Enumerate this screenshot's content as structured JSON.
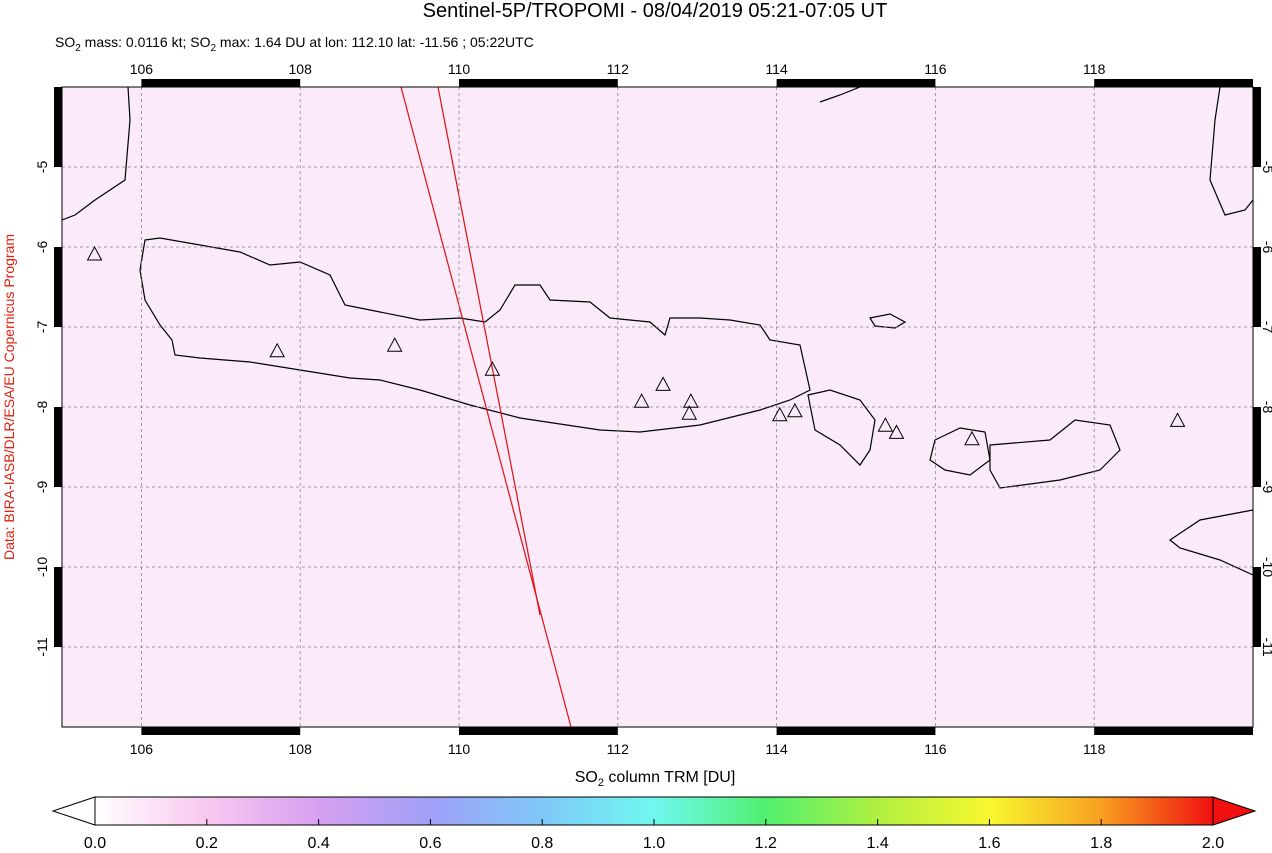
{
  "chart_data": {
    "type": "map",
    "title": "Sentinel-5P/TROPOMI - 08/04/2019 05:21-07:05 UT",
    "subtitle_parts": [
      "SO",
      "2",
      " mass: 0.0116 kt; SO",
      "2",
      " max: 1.64 DU at lon: 112.10 lat: -11.56 ; 05:22UTC"
    ],
    "credit": "Data: BIRA-IASB/DLR/ESA/EU Copernicus Program",
    "xlim": [
      105,
      120
    ],
    "ylim": [
      -12,
      -4
    ],
    "xticks": [
      106,
      108,
      110,
      112,
      114,
      116,
      118
    ],
    "yticks": [
      -5,
      -6,
      -7,
      -8,
      -9,
      -10,
      -11
    ],
    "grid": true,
    "volcanoes": {
      "lon": [
        107.71,
        109.19,
        110.42,
        112.3,
        112.57,
        112.92,
        112.9,
        114.04,
        114.23,
        115.37,
        115.51,
        116.46,
        119.05,
        105.41
      ],
      "lat": [
        -7.31,
        -7.24,
        -7.54,
        -7.94,
        -7.73,
        -7.94,
        -8.09,
        -8.11,
        -8.06,
        -8.24,
        -8.33,
        -8.41,
        -8.18,
        -6.1
      ]
    },
    "colorbar": {
      "label_parts": [
        "SO",
        "2",
        " column TRM [DU]"
      ],
      "lim": [
        0,
        2
      ],
      "ticks": [
        {
          "value": 0,
          "label": "0.0"
        },
        {
          "value": 0.2,
          "label": "0.2"
        },
        {
          "value": 0.4,
          "label": "0.4"
        },
        {
          "value": 0.6,
          "label": "0.6"
        },
        {
          "value": 0.8,
          "label": "0.8"
        },
        {
          "value": 1,
          "label": "1.0"
        },
        {
          "value": 1.2,
          "label": "1.2"
        },
        {
          "value": 1.4,
          "label": "1.4"
        },
        {
          "value": 1.6,
          "label": "1.6"
        },
        {
          "value": 1.8,
          "label": "1.8"
        },
        {
          "value": 2,
          "label": "2.0"
        }
      ],
      "colors": [
        "#ffffff",
        "#f8c8f0",
        "#d8a0f0",
        "#a0a0f8",
        "#80c8f8",
        "#70f8f0",
        "#50f070",
        "#b0f040",
        "#f8f830",
        "#f8a020",
        "#f01010"
      ]
    }
  }
}
